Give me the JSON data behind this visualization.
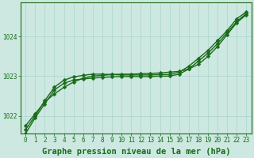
{
  "title": "Graphe pression niveau de la mer (hPa)",
  "xticks": [
    0,
    1,
    2,
    3,
    4,
    5,
    6,
    7,
    8,
    9,
    10,
    11,
    12,
    13,
    14,
    15,
    16,
    17,
    18,
    19,
    20,
    21,
    22,
    23
  ],
  "yticks": [
    1022,
    1023,
    1024
  ],
  "ylim": [
    1021.55,
    1024.85
  ],
  "xlim": [
    -0.5,
    23.5
  ],
  "bg_color": "#cce8e0",
  "grid_color": "#aad4cc",
  "line_color": "#1a6b1a",
  "series1": [
    1021.75,
    1022.05,
    1022.35,
    1022.55,
    1022.72,
    1022.85,
    1022.95,
    1023.0,
    1023.02,
    1023.04,
    1023.05,
    1023.05,
    1023.06,
    1023.07,
    1023.08,
    1023.1,
    1023.12,
    1023.18,
    1023.3,
    1023.5,
    1023.75,
    1024.05,
    1024.35,
    1024.55
  ],
  "series2": [
    1021.65,
    1022.0,
    1022.38,
    1022.72,
    1022.9,
    1022.98,
    1023.02,
    1023.05,
    1023.05,
    1023.04,
    1023.03,
    1023.03,
    1023.03,
    1023.03,
    1023.04,
    1023.04,
    1023.1,
    1023.25,
    1023.45,
    1023.65,
    1023.9,
    1024.15,
    1024.45,
    1024.62
  ],
  "series3": [
    1021.55,
    1021.95,
    1022.3,
    1022.65,
    1022.82,
    1022.9,
    1022.93,
    1022.95,
    1022.97,
    1022.98,
    1022.99,
    1022.99,
    1022.99,
    1022.99,
    1023.0,
    1023.0,
    1023.05,
    1023.18,
    1023.38,
    1023.58,
    1023.82,
    1024.1,
    1024.38,
    1024.58
  ],
  "marker": "D",
  "marker_size": 2.5,
  "linewidth": 1.0,
  "title_fontsize": 7.5,
  "tick_fontsize": 5.5,
  "tick_color": "#1a6b1a",
  "axis_color": "#1a6b1a"
}
